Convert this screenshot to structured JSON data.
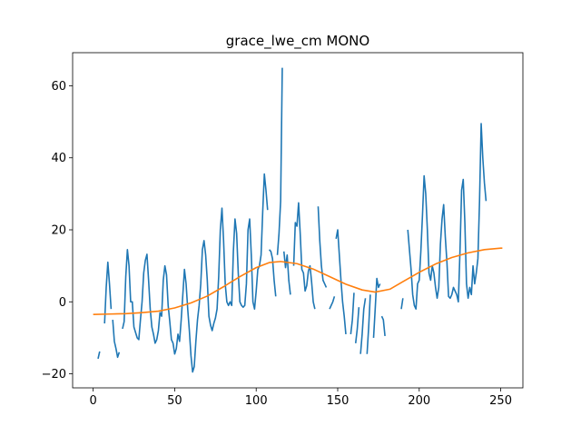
{
  "chart_data": {
    "type": "line",
    "title": "grace_lwe_cm MONO",
    "xlabel": "",
    "ylabel": "",
    "xlim": [
      -12.6,
      263.6
    ],
    "ylim": [
      -23.9,
      69.2
    ],
    "xticks": [
      0,
      50,
      100,
      150,
      200,
      250
    ],
    "yticks": [
      -20,
      0,
      20,
      40,
      60
    ],
    "grid": false,
    "legend": "none",
    "series": [
      {
        "color": "#1f77b4",
        "segments": [
          [
            [
              3,
              -15.8
            ],
            [
              4,
              -13.8
            ]
          ],
          [
            [
              7,
              -6.0
            ],
            [
              8,
              4.0
            ],
            [
              9,
              11.0
            ],
            [
              10,
              5.0
            ],
            [
              11,
              -2.0
            ]
          ],
          [
            [
              12,
              -5.0
            ],
            [
              13,
              -11.0
            ],
            [
              14,
              -13.0
            ],
            [
              15,
              -15.4
            ],
            [
              16,
              -14.0
            ]
          ],
          [
            [
              18,
              -7.5
            ],
            [
              19,
              -5.5
            ],
            [
              20,
              7.0
            ],
            [
              21,
              14.5
            ],
            [
              22,
              10.0
            ],
            [
              23,
              0.0
            ],
            [
              24,
              0.0
            ],
            [
              25,
              -7.0
            ],
            [
              26,
              -8.5
            ],
            [
              27,
              -10.0
            ],
            [
              28,
              -10.5
            ],
            [
              29,
              -5.0
            ],
            [
              30,
              0.0
            ],
            [
              31,
              8.0
            ],
            [
              32,
              11.5
            ],
            [
              33,
              13.2
            ],
            [
              34,
              6.0
            ],
            [
              35,
              -2.0
            ],
            [
              36,
              -7.0
            ],
            [
              37,
              -9.0
            ],
            [
              38,
              -11.5
            ],
            [
              39,
              -10.5
            ],
            [
              40,
              -8.0
            ],
            [
              41,
              -3.0
            ],
            [
              42,
              -4.0
            ],
            [
              43,
              6.0
            ],
            [
              44,
              10.0
            ],
            [
              45,
              7.5
            ],
            [
              46,
              -1.0
            ],
            [
              47,
              -5.5
            ],
            [
              48,
              -10.5
            ],
            [
              49,
              -11.5
            ],
            [
              50,
              -14.5
            ],
            [
              51,
              -13.0
            ],
            [
              52,
              -9.0
            ],
            [
              53,
              -11.0
            ],
            [
              54,
              -5.0
            ],
            [
              55,
              2.0
            ],
            [
              56,
              9.0
            ],
            [
              57,
              5.0
            ],
            [
              58,
              -2.0
            ],
            [
              59,
              -8.0
            ],
            [
              60,
              -15.0
            ],
            [
              61,
              -19.5
            ],
            [
              62,
              -18.0
            ],
            [
              63,
              -11.0
            ],
            [
              64,
              -5.0
            ],
            [
              65,
              -1.0
            ],
            [
              66,
              5.0
            ],
            [
              67,
              14.5
            ],
            [
              68,
              17.0
            ],
            [
              69,
              13.0
            ],
            [
              70,
              6.0
            ],
            [
              71,
              -4.0
            ],
            [
              72,
              -6.5
            ],
            [
              73,
              -8.0
            ],
            [
              74,
              -6.0
            ],
            [
              75,
              -4.5
            ],
            [
              76,
              -2.0
            ],
            [
              77,
              7.0
            ],
            [
              78,
              20.0
            ],
            [
              79,
              26.0
            ],
            [
              80,
              17.0
            ],
            [
              81,
              5.0
            ],
            [
              82,
              0.0
            ],
            [
              83,
              -1.0
            ],
            [
              84,
              0.0
            ],
            [
              85,
              -1.0
            ],
            [
              86,
              14.0
            ],
            [
              87,
              23.0
            ],
            [
              88,
              19.0
            ],
            [
              89,
              8.0
            ],
            [
              90,
              0.0
            ],
            [
              91,
              -1.0
            ],
            [
              92,
              -1.5
            ],
            [
              93,
              -1.0
            ],
            [
              94,
              5.0
            ],
            [
              95,
              20.0
            ],
            [
              96,
              23.0
            ],
            [
              97,
              13.0
            ],
            [
              98,
              0.0
            ],
            [
              99,
              -2.0
            ],
            [
              100,
              3.0
            ],
            [
              101,
              9.0
            ],
            [
              102,
              10.0
            ],
            [
              103,
              13.0
            ],
            [
              104,
              25.0
            ],
            [
              105,
              35.5
            ],
            [
              106,
              31.0
            ],
            [
              107,
              25.5
            ]
          ],
          [
            [
              108,
              14.5
            ],
            [
              109,
              14.0
            ],
            [
              110,
              12.0
            ],
            [
              111,
              6.0
            ],
            [
              112,
              1.5
            ]
          ],
          [
            [
              113,
              13.0
            ],
            [
              114,
              19.0
            ],
            [
              115,
              28.0
            ],
            [
              116,
              65.0
            ]
          ],
          [
            [
              117,
              14.0
            ],
            [
              118,
              9.5
            ],
            [
              119,
              13.0
            ],
            [
              120,
              6.0
            ],
            [
              121,
              2.0
            ]
          ],
          [
            [
              123,
              10.0
            ],
            [
              124,
              22.0
            ],
            [
              125,
              21.0
            ],
            [
              126,
              27.5
            ],
            [
              127,
              19.0
            ],
            [
              128,
              9.0
            ],
            [
              129,
              8.0
            ],
            [
              130,
              3.0
            ],
            [
              131,
              4.5
            ],
            [
              132,
              8.5
            ],
            [
              133,
              10.0
            ],
            [
              134,
              5.5
            ],
            [
              135,
              0.0
            ],
            [
              136,
              -2.0
            ]
          ],
          [
            [
              138,
              26.5
            ],
            [
              139,
              17.0
            ],
            [
              140,
              10.0
            ],
            [
              141,
              6.0
            ],
            [
              142,
              5.0
            ],
            [
              143,
              4.0
            ]
          ],
          [
            [
              145,
              -2.0
            ],
            [
              146,
              -1.0
            ],
            [
              147,
              0.0
            ],
            [
              148,
              1.5
            ]
          ],
          [
            [
              149,
              17.5
            ],
            [
              150,
              20.0
            ],
            [
              151,
              13.0
            ],
            [
              152,
              6.0
            ],
            [
              153,
              0.0
            ],
            [
              154,
              -4.0
            ],
            [
              155,
              -9.0
            ]
          ],
          [
            [
              158,
              -9.0
            ],
            [
              159,
              -5.0
            ],
            [
              160,
              2.5
            ]
          ],
          [
            [
              161,
              -11.5
            ],
            [
              162,
              -7.5
            ],
            [
              163,
              -1.5
            ]
          ],
          [
            [
              164,
              -14.5
            ],
            [
              165,
              -9.0
            ],
            [
              166,
              -2.0
            ],
            [
              167,
              1.0
            ]
          ],
          [
            [
              168,
              -14.5
            ],
            [
              169,
              -7.0
            ],
            [
              170,
              2.0
            ]
          ],
          [
            [
              172,
              -10.0
            ],
            [
              173,
              -2.0
            ],
            [
              174,
              6.5
            ],
            [
              175,
              4.0
            ],
            [
              176,
              5.0
            ]
          ],
          [
            [
              177,
              -4.0
            ],
            [
              178,
              -5.0
            ],
            [
              179,
              -9.5
            ]
          ],
          [
            [
              189,
              -2.0
            ],
            [
              190,
              1.0
            ]
          ],
          [
            [
              193,
              20.0
            ],
            [
              194,
              14.5
            ],
            [
              195,
              9.0
            ],
            [
              196,
              2.0
            ],
            [
              197,
              -1.0
            ],
            [
              198,
              -2.0
            ],
            [
              199,
              5.0
            ],
            [
              200,
              6.0
            ],
            [
              201,
              14.0
            ],
            [
              202,
              24.0
            ],
            [
              203,
              35.0
            ],
            [
              204,
              30.0
            ],
            [
              205,
              20.0
            ],
            [
              206,
              8.0
            ],
            [
              207,
              6.0
            ],
            [
              208,
              10.0
            ],
            [
              209,
              8.0
            ],
            [
              210,
              4.0
            ],
            [
              211,
              1.0
            ],
            [
              212,
              4.0
            ],
            [
              213,
              16.0
            ],
            [
              214,
              23.0
            ],
            [
              215,
              27.0
            ],
            [
              216,
              18.0
            ],
            [
              217,
              11.0
            ],
            [
              218,
              1.5
            ],
            [
              219,
              1.0
            ],
            [
              220,
              2.0
            ],
            [
              221,
              4.0
            ],
            [
              222,
              3.0
            ],
            [
              223,
              2.0
            ],
            [
              224,
              0.0
            ],
            [
              225,
              14.0
            ],
            [
              226,
              31.0
            ],
            [
              227,
              34.0
            ],
            [
              228,
              22.0
            ],
            [
              229,
              5.0
            ],
            [
              230,
              1.0
            ],
            [
              231,
              4.0
            ],
            [
              232,
              2.0
            ],
            [
              233,
              10.0
            ],
            [
              234,
              5.0
            ],
            [
              235,
              8.0
            ],
            [
              236,
              12.0
            ],
            [
              237,
              28.0
            ],
            [
              238,
              49.5
            ],
            [
              239,
              40.0
            ],
            [
              240,
              33.0
            ],
            [
              241,
              28.0
            ]
          ]
        ]
      },
      {
        "color": "#ff7f0e",
        "segments": [
          [
            [
              0,
              -3.5
            ],
            [
              10,
              -3.4
            ],
            [
              20,
              -3.3
            ],
            [
              30,
              -3.0
            ],
            [
              40,
              -2.6
            ],
            [
              50,
              -1.7
            ],
            [
              60,
              -0.3
            ],
            [
              70,
              1.6
            ],
            [
              80,
              4.2
            ],
            [
              90,
              7.0
            ],
            [
              100,
              9.5
            ],
            [
              108,
              10.9
            ],
            [
              115,
              11.2
            ],
            [
              125,
              10.6
            ],
            [
              135,
              9.1
            ],
            [
              145,
              7.0
            ],
            [
              155,
              4.9
            ],
            [
              165,
              3.3
            ],
            [
              173,
              2.7
            ],
            [
              182,
              3.5
            ],
            [
              190,
              5.6
            ],
            [
              200,
              8.2
            ],
            [
              210,
              10.5
            ],
            [
              220,
              12.3
            ],
            [
              230,
              13.6
            ],
            [
              240,
              14.5
            ],
            [
              250,
              14.9
            ],
            [
              251,
              14.9
            ]
          ]
        ]
      }
    ]
  }
}
